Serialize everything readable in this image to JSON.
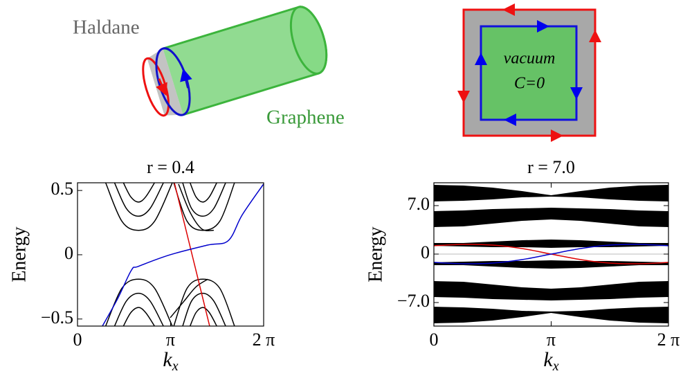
{
  "chart_data": [
    {
      "type": "line",
      "title": "r = 0.4",
      "y_label": "Energy",
      "x_label": {
        "text": "k",
        "sub": "x"
      },
      "xlim": [
        0,
        6.2832
      ],
      "ylim": [
        -0.555,
        0.56
      ],
      "xticks": [
        0,
        {
          "value": 3.1416,
          "label": "π"
        },
        {
          "value": 6.2832,
          "label": "2 π"
        }
      ],
      "yticks": [
        0.5,
        0,
        {
          "value": -0.5,
          "label": "−0.5"
        }
      ],
      "series": [
        {
          "color": "#000000",
          "x": [
            0.95,
            1.5,
            2.06,
            2.6,
            3.2
          ],
          "values": [
            0.56,
            0.26,
            0.19,
            0.26,
            0.56
          ]
        },
        {
          "color": "#000000",
          "x": [
            1.25,
            1.65,
            2.06,
            2.45,
            2.9
          ],
          "values": [
            0.56,
            0.36,
            0.3,
            0.36,
            0.56
          ]
        },
        {
          "color": "#000000",
          "x": [
            1.55,
            1.8,
            2.06,
            2.3,
            2.6
          ],
          "values": [
            0.56,
            0.45,
            0.41,
            0.45,
            0.56
          ]
        },
        {
          "color": "#000000",
          "x": [
            3.25,
            3.7,
            4.23,
            4.8,
            5.3
          ],
          "values": [
            0.56,
            0.26,
            0.19,
            0.26,
            0.56
          ]
        },
        {
          "color": "#000000",
          "x": [
            3.55,
            3.85,
            4.23,
            4.6,
            5.0
          ],
          "values": [
            0.56,
            0.36,
            0.3,
            0.36,
            0.56
          ]
        },
        {
          "color": "#000000",
          "x": [
            3.8,
            4.0,
            4.23,
            4.45,
            4.7
          ],
          "values": [
            0.56,
            0.45,
            0.41,
            0.45,
            0.56
          ]
        },
        {
          "color": "#000000",
          "x": [
            0.95,
            1.5,
            2.06,
            2.6,
            3.2
          ],
          "values": [
            -0.555,
            -0.26,
            -0.19,
            -0.26,
            -0.555
          ]
        },
        {
          "color": "#000000",
          "x": [
            1.25,
            1.65,
            2.06,
            2.45,
            2.9
          ],
          "values": [
            -0.555,
            -0.36,
            -0.3,
            -0.36,
            -0.555
          ]
        },
        {
          "color": "#000000",
          "x": [
            1.55,
            1.8,
            2.06,
            2.3,
            2.6
          ],
          "values": [
            -0.555,
            -0.45,
            -0.41,
            -0.45,
            -0.555
          ]
        },
        {
          "color": "#000000",
          "x": [
            3.25,
            3.7,
            4.23,
            4.8,
            5.3
          ],
          "values": [
            -0.555,
            -0.26,
            -0.19,
            -0.26,
            -0.555
          ]
        },
        {
          "color": "#000000",
          "x": [
            3.55,
            3.85,
            4.23,
            4.6,
            5.0
          ],
          "values": [
            -0.555,
            -0.36,
            -0.3,
            -0.36,
            -0.555
          ]
        },
        {
          "color": "#000000",
          "x": [
            3.8,
            4.0,
            4.23,
            4.45,
            4.7
          ],
          "values": [
            -0.555,
            -0.45,
            -0.41,
            -0.45,
            -0.555
          ]
        },
        {
          "color": "#000000",
          "x": [
            3.41,
            3.8,
            4.2,
            4.6
          ],
          "values": [
            0.55,
            0.33,
            0.2,
            0.19
          ]
        },
        {
          "color": "#000000",
          "x": [
            3.13,
            3.6,
            4.0,
            4.4
          ],
          "values": [
            -0.49,
            -0.36,
            -0.25,
            -0.19
          ]
        },
        {
          "color": "#dd0000",
          "x": [
            3.27,
            4.46
          ],
          "values": [
            0.56,
            -0.555
          ]
        },
        {
          "color": "#0000cc",
          "x": [
            0.84,
            1.36,
            1.82,
            2.06,
            3.13,
            4.39,
            5.09,
            5.56,
            6.28
          ],
          "values": [
            -0.555,
            -0.34,
            -0.12,
            -0.09,
            0,
            0.075,
            0.11,
            0.31,
            0.55
          ]
        }
      ]
    },
    {
      "type": "band",
      "title": "r = 7.0",
      "y_label": "Energy",
      "x_label": {
        "text": "k",
        "sub": "x"
      },
      "xlim": [
        0,
        6.2832
      ],
      "ylim": [
        -10.4,
        10.3
      ],
      "xticks": [
        0,
        {
          "value": 3.1416,
          "label": "π"
        },
        {
          "value": 6.2832,
          "label": "2 π"
        }
      ],
      "yticks": [
        {
          "value": 7,
          "label": "7.0"
        },
        0,
        {
          "value": -7,
          "label": "−7.0"
        }
      ],
      "x": [
        0,
        0.79,
        1.57,
        2.36,
        3.14,
        3.93,
        4.71,
        5.5,
        6.28
      ],
      "bands": [
        {
          "color": "#000000",
          "high": [
            10.0,
            9.9,
            9.6,
            9.1,
            8.5,
            9.1,
            9.6,
            9.9,
            10.0
          ],
          "low": [
            7.6,
            7.7,
            7.9,
            8.2,
            8.3,
            8.2,
            7.9,
            7.7,
            7.6
          ]
        },
        {
          "color": "#000000",
          "high": [
            6.2,
            6.3,
            6.5,
            6.6,
            6.7,
            6.6,
            6.5,
            6.3,
            6.2
          ],
          "low": [
            3.9,
            4.0,
            4.4,
            4.8,
            5.0,
            4.8,
            4.4,
            4.0,
            3.9
          ]
        },
        {
          "color": "#000000",
          "high": [
            1.6,
            1.6,
            1.8,
            2.0,
            2.1,
            2.0,
            1.8,
            1.6,
            1.6
          ],
          "low": [
            1.2,
            1.1,
            1.0,
            1.0,
            0.9,
            1.0,
            1.0,
            1.1,
            1.2
          ]
        },
        {
          "color": "#000000",
          "high": [
            -1.2,
            -1.1,
            -1.0,
            -1.0,
            -0.9,
            -1.0,
            -1.0,
            -1.1,
            -1.2
          ],
          "low": [
            -1.6,
            -1.6,
            -1.8,
            -2.0,
            -2.1,
            -2.0,
            -1.8,
            -1.6,
            -1.6
          ]
        },
        {
          "color": "#000000",
          "high": [
            -3.9,
            -4.0,
            -4.4,
            -4.8,
            -5.0,
            -4.8,
            -4.4,
            -4.0,
            -3.9
          ],
          "low": [
            -6.2,
            -6.3,
            -6.5,
            -6.6,
            -6.7,
            -6.6,
            -6.5,
            -6.3,
            -6.2
          ]
        },
        {
          "color": "#000000",
          "high": [
            -7.6,
            -7.7,
            -7.9,
            -8.2,
            -8.3,
            -8.2,
            -7.9,
            -7.7,
            -7.6
          ],
          "low": [
            -10.0,
            -9.9,
            -9.6,
            -9.1,
            -8.5,
            -9.1,
            -9.6,
            -9.9,
            -10.0
          ]
        }
      ],
      "series": [
        {
          "color": "#dd0000",
          "values": [
            1.2,
            1.4,
            1.3,
            0.8,
            0,
            -0.8,
            -1.3,
            -1.4,
            -1.2
          ]
        },
        {
          "color": "#0000cc",
          "values": [
            -1.2,
            -1.4,
            -1.3,
            -0.8,
            0,
            0.8,
            1.3,
            1.4,
            1.2
          ]
        }
      ]
    }
  ],
  "diagram": {
    "cylinder": {
      "labels": [
        "Haldane",
        "Graphene"
      ]
    },
    "square": {
      "labels": [
        "vacuum",
        "C=0"
      ]
    }
  }
}
